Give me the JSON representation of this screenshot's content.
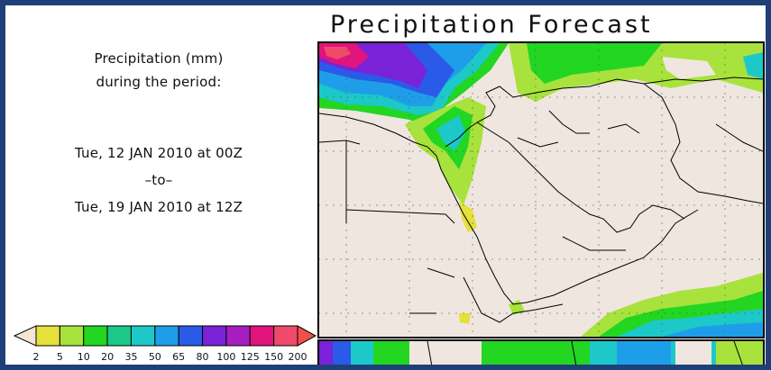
{
  "title": "Precipitation Forecast",
  "description": {
    "line1": "Precipitation (mm)",
    "line2": "during the period:",
    "start": "Tue, 12 JAN 2010 at 00Z",
    "separator": "–to–",
    "end": "Tue, 19 JAN 2010 at 12Z"
  },
  "legend": {
    "labels": [
      "2",
      "5",
      "10",
      "20",
      "35",
      "50",
      "65",
      "80",
      "100",
      "125",
      "150",
      "200"
    ],
    "colors": [
      "#e4e03c",
      "#a8e23c",
      "#22d622",
      "#1ac88a",
      "#1dc8c8",
      "#1e9ee8",
      "#2a5ae8",
      "#7a22d8",
      "#a61ec0",
      "#e0147c",
      "#f04a6a"
    ],
    "low_cap_color": "#f3e4d6",
    "high_cap_color": "#f2504a"
  },
  "map": {
    "background_color": "#efe6e0",
    "region": "Middle East and Northeast Africa"
  }
}
